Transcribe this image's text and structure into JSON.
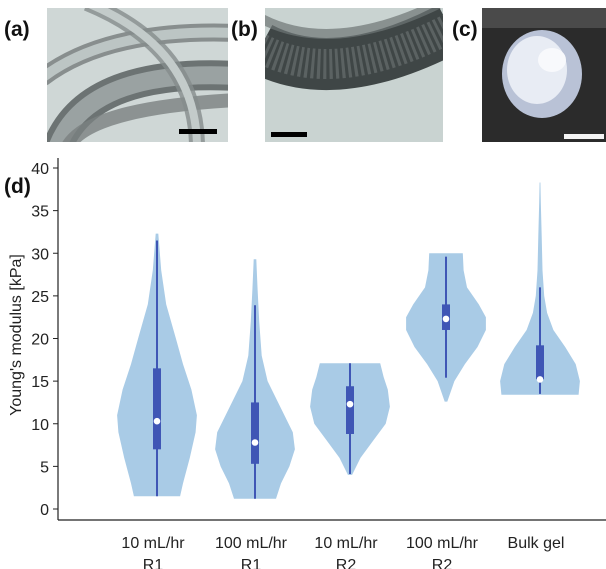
{
  "panels": {
    "a": "(a)",
    "b": "(b)",
    "c": "(c)",
    "d": "(d)"
  },
  "colors": {
    "violin_fill": "#a9cbe6",
    "box": "#3f56b5",
    "median": "#ffffff",
    "axis": "#222222"
  },
  "chart_data": {
    "type": "violin",
    "ylabel": "Young's modulus [kPa]",
    "xlabel": "",
    "ylim": [
      0,
      40
    ],
    "yticks": [
      0,
      5,
      10,
      15,
      20,
      25,
      30,
      35,
      40
    ],
    "categories": [
      [
        "10 mL/hr",
        "R1"
      ],
      [
        "100 mL/hr",
        "R1"
      ],
      [
        "10 mL/hr",
        "R2"
      ],
      [
        "100 mL/hr",
        "R2"
      ],
      [
        "Bulk gel"
      ]
    ],
    "groups": [
      {
        "min": 1.5,
        "q1": 7.0,
        "median": 10.3,
        "q3": 16.5,
        "max": 31.5,
        "violin_min": 1.5,
        "violin_max": 32.3,
        "density": [
          [
            1.5,
            0.55
          ],
          [
            3,
            0.62
          ],
          [
            6,
            0.78
          ],
          [
            9,
            0.92
          ],
          [
            11,
            0.95
          ],
          [
            14,
            0.82
          ],
          [
            17,
            0.62
          ],
          [
            20,
            0.45
          ],
          [
            24,
            0.22
          ],
          [
            28,
            0.1
          ],
          [
            32.3,
            0.03
          ]
        ]
      },
      {
        "min": 1.2,
        "q1": 5.3,
        "median": 7.8,
        "q3": 12.5,
        "max": 23.9,
        "violin_min": 1.2,
        "violin_max": 29.3,
        "density": [
          [
            1.2,
            0.5
          ],
          [
            3,
            0.62
          ],
          [
            5,
            0.82
          ],
          [
            7,
            0.95
          ],
          [
            9,
            0.9
          ],
          [
            12,
            0.6
          ],
          [
            15,
            0.3
          ],
          [
            18,
            0.16
          ],
          [
            22,
            0.1
          ],
          [
            26,
            0.06
          ],
          [
            29.3,
            0.03
          ]
        ]
      },
      {
        "min": 4.1,
        "q1": 8.8,
        "median": 12.3,
        "q3": 14.4,
        "max": 17.1,
        "violin_min": 4.0,
        "violin_max": 17.1,
        "density": [
          [
            4,
            0.05
          ],
          [
            6,
            0.25
          ],
          [
            8,
            0.55
          ],
          [
            10,
            0.85
          ],
          [
            12,
            0.95
          ],
          [
            14,
            0.9
          ],
          [
            15.5,
            0.8
          ],
          [
            17.1,
            0.72
          ]
        ]
      },
      {
        "min": 15.4,
        "q1": 21.0,
        "median": 22.3,
        "q3": 24.0,
        "max": 29.6,
        "violin_min": 12.6,
        "violin_max": 30.0,
        "density": [
          [
            12.6,
            0.03
          ],
          [
            15,
            0.2
          ],
          [
            17,
            0.45
          ],
          [
            19,
            0.75
          ],
          [
            21,
            0.95
          ],
          [
            22.5,
            0.95
          ],
          [
            24,
            0.78
          ],
          [
            26,
            0.5
          ],
          [
            28,
            0.42
          ],
          [
            30,
            0.4
          ]
        ]
      },
      {
        "min": 13.5,
        "q1": 15.2,
        "median": 15.2,
        "q3": 19.2,
        "max": 26.0,
        "violin_min": 13.4,
        "violin_max": 38.3,
        "density": [
          [
            13.4,
            0.92
          ],
          [
            15,
            0.95
          ],
          [
            17,
            0.85
          ],
          [
            19,
            0.6
          ],
          [
            21,
            0.32
          ],
          [
            23,
            0.17
          ],
          [
            25,
            0.1
          ],
          [
            28,
            0.06
          ],
          [
            32,
            0.04
          ],
          [
            36,
            0.02
          ],
          [
            38.3,
            0.01
          ]
        ]
      }
    ]
  }
}
